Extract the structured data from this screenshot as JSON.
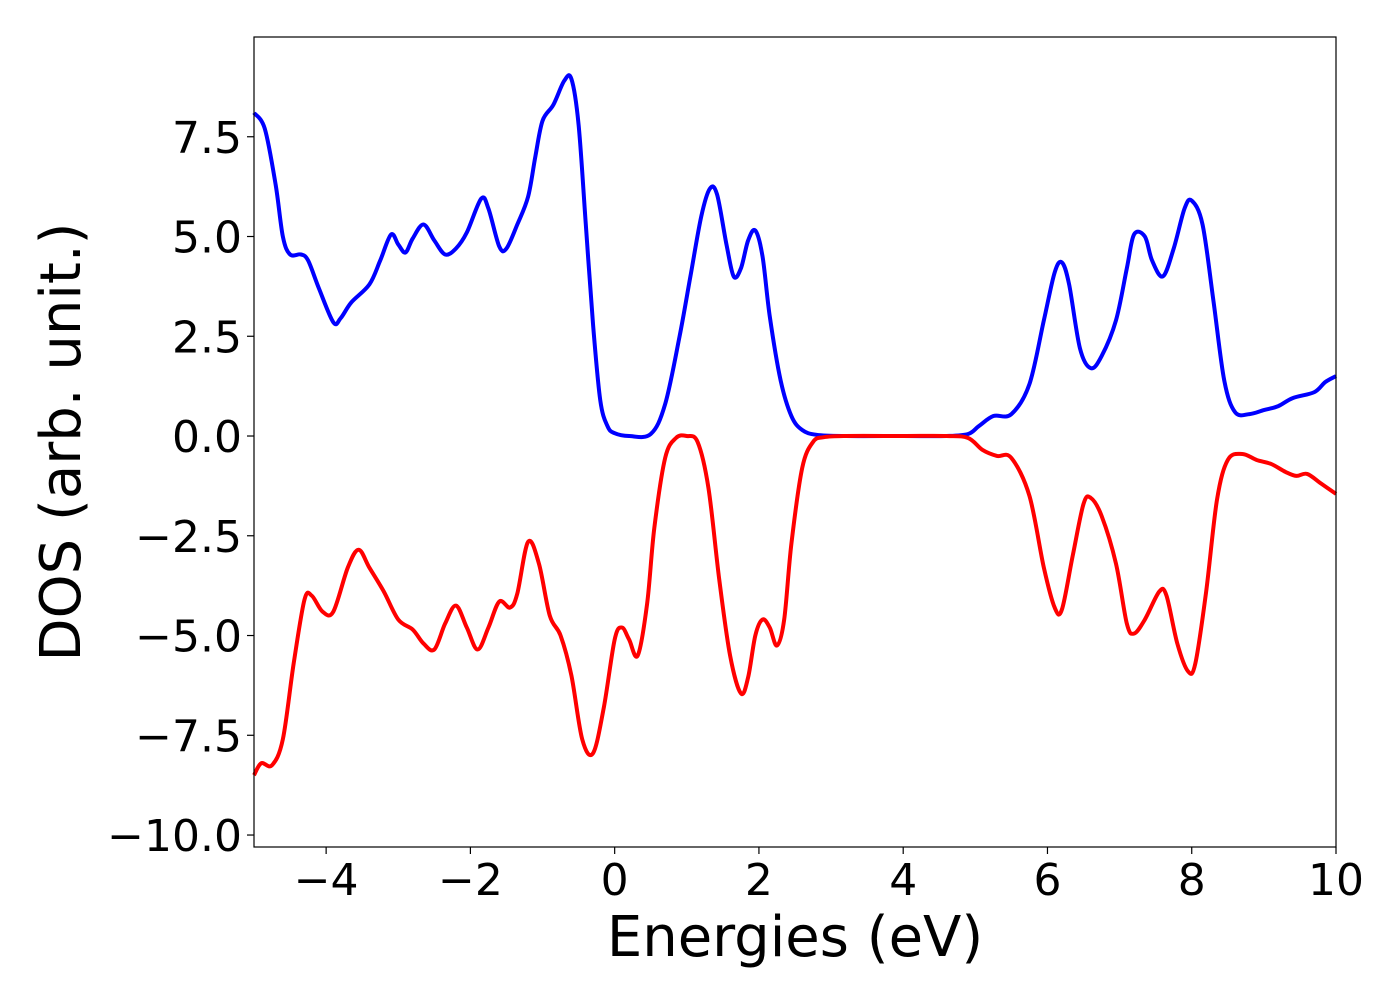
{
  "chart_data": {
    "type": "line",
    "title": "",
    "xlabel": "Energies (eV)",
    "ylabel": "DOS (arb. unit.)",
    "xlim": [
      -5,
      10
    ],
    "ylim": [
      -10.3,
      10
    ],
    "grid": false,
    "legend": "none",
    "x_ticks": [
      -4,
      -2,
      0,
      2,
      4,
      6,
      8,
      10
    ],
    "x_tick_labels": [
      "−4",
      "−2",
      "0",
      "2",
      "4",
      "6",
      "8",
      "10"
    ],
    "y_ticks": [
      7.5,
      5.0,
      2.5,
      0.0,
      -2.5,
      -5.0,
      -7.5,
      -10.0
    ],
    "y_tick_labels": [
      "7.5",
      "5.0",
      "2.5",
      "0.0",
      "−2.5",
      "−5.0",
      "−7.5",
      "−10.0"
    ],
    "series": [
      {
        "color": "#0000ff",
        "points": [
          [
            -5.0,
            8.1
          ],
          [
            -4.85,
            7.7
          ],
          [
            -4.7,
            6.3
          ],
          [
            -4.6,
            5.0
          ],
          [
            -4.5,
            4.55
          ],
          [
            -4.35,
            4.55
          ],
          [
            -4.25,
            4.4
          ],
          [
            -4.1,
            3.7
          ],
          [
            -3.9,
            2.85
          ],
          [
            -3.8,
            2.95
          ],
          [
            -3.65,
            3.35
          ],
          [
            -3.4,
            3.8
          ],
          [
            -3.25,
            4.4
          ],
          [
            -3.1,
            5.05
          ],
          [
            -3.0,
            4.8
          ],
          [
            -2.9,
            4.6
          ],
          [
            -2.8,
            4.95
          ],
          [
            -2.65,
            5.3
          ],
          [
            -2.5,
            4.9
          ],
          [
            -2.35,
            4.55
          ],
          [
            -2.2,
            4.7
          ],
          [
            -2.05,
            5.1
          ],
          [
            -1.85,
            5.95
          ],
          [
            -1.75,
            5.7
          ],
          [
            -1.6,
            4.75
          ],
          [
            -1.5,
            4.7
          ],
          [
            -1.35,
            5.3
          ],
          [
            -1.2,
            6.0
          ],
          [
            -1.1,
            7.0
          ],
          [
            -1.0,
            7.9
          ],
          [
            -0.85,
            8.3
          ],
          [
            -0.7,
            8.9
          ],
          [
            -0.6,
            8.95
          ],
          [
            -0.5,
            7.8
          ],
          [
            -0.4,
            5.3
          ],
          [
            -0.3,
            2.8
          ],
          [
            -0.2,
            0.9
          ],
          [
            -0.1,
            0.25
          ],
          [
            0.0,
            0.07
          ],
          [
            0.2,
            0.0
          ],
          [
            0.5,
            0.05
          ],
          [
            0.7,
            0.8
          ],
          [
            0.9,
            2.5
          ],
          [
            1.05,
            4.0
          ],
          [
            1.2,
            5.5
          ],
          [
            1.32,
            6.2
          ],
          [
            1.42,
            6.05
          ],
          [
            1.55,
            4.8
          ],
          [
            1.65,
            4.0
          ],
          [
            1.75,
            4.2
          ],
          [
            1.85,
            4.9
          ],
          [
            1.95,
            5.15
          ],
          [
            2.05,
            4.5
          ],
          [
            2.15,
            3.0
          ],
          [
            2.3,
            1.4
          ],
          [
            2.45,
            0.5
          ],
          [
            2.6,
            0.15
          ],
          [
            2.8,
            0.03
          ],
          [
            3.2,
            0.0
          ],
          [
            4.0,
            0.0
          ],
          [
            4.6,
            0.0
          ],
          [
            4.9,
            0.05
          ],
          [
            5.05,
            0.25
          ],
          [
            5.25,
            0.5
          ],
          [
            5.5,
            0.55
          ],
          [
            5.75,
            1.3
          ],
          [
            5.95,
            2.9
          ],
          [
            6.1,
            4.1
          ],
          [
            6.2,
            4.35
          ],
          [
            6.3,
            3.8
          ],
          [
            6.45,
            2.2
          ],
          [
            6.6,
            1.7
          ],
          [
            6.75,
            2.0
          ],
          [
            6.95,
            2.9
          ],
          [
            7.1,
            4.2
          ],
          [
            7.2,
            5.05
          ],
          [
            7.35,
            5.0
          ],
          [
            7.45,
            4.4
          ],
          [
            7.6,
            4.0
          ],
          [
            7.75,
            4.7
          ],
          [
            7.9,
            5.7
          ],
          [
            8.0,
            5.9
          ],
          [
            8.15,
            5.3
          ],
          [
            8.3,
            3.4
          ],
          [
            8.45,
            1.4
          ],
          [
            8.6,
            0.6
          ],
          [
            8.8,
            0.55
          ],
          [
            9.0,
            0.65
          ],
          [
            9.2,
            0.75
          ],
          [
            9.4,
            0.95
          ],
          [
            9.7,
            1.1
          ],
          [
            9.85,
            1.35
          ],
          [
            10.0,
            1.5
          ]
        ]
      },
      {
        "color": "#ff0000",
        "points": [
          [
            -5.0,
            -8.5
          ],
          [
            -4.9,
            -8.2
          ],
          [
            -4.75,
            -8.25
          ],
          [
            -4.6,
            -7.6
          ],
          [
            -4.45,
            -5.7
          ],
          [
            -4.3,
            -4.1
          ],
          [
            -4.2,
            -4.0
          ],
          [
            -4.05,
            -4.4
          ],
          [
            -3.9,
            -4.4
          ],
          [
            -3.7,
            -3.3
          ],
          [
            -3.55,
            -2.85
          ],
          [
            -3.4,
            -3.3
          ],
          [
            -3.2,
            -3.9
          ],
          [
            -3.0,
            -4.6
          ],
          [
            -2.8,
            -4.85
          ],
          [
            -2.65,
            -5.2
          ],
          [
            -2.5,
            -5.35
          ],
          [
            -2.35,
            -4.7
          ],
          [
            -2.2,
            -4.25
          ],
          [
            -2.05,
            -4.8
          ],
          [
            -1.9,
            -5.35
          ],
          [
            -1.75,
            -4.8
          ],
          [
            -1.6,
            -4.15
          ],
          [
            -1.45,
            -4.3
          ],
          [
            -1.35,
            -3.95
          ],
          [
            -1.2,
            -2.65
          ],
          [
            -1.05,
            -3.2
          ],
          [
            -0.9,
            -4.5
          ],
          [
            -0.75,
            -5.0
          ],
          [
            -0.6,
            -6.0
          ],
          [
            -0.45,
            -7.6
          ],
          [
            -0.3,
            -7.95
          ],
          [
            -0.15,
            -6.8
          ],
          [
            0.0,
            -5.1
          ],
          [
            0.1,
            -4.8
          ],
          [
            0.2,
            -5.1
          ],
          [
            0.32,
            -5.5
          ],
          [
            0.45,
            -4.2
          ],
          [
            0.55,
            -2.3
          ],
          [
            0.7,
            -0.55
          ],
          [
            0.85,
            -0.05
          ],
          [
            1.0,
            0.0
          ],
          [
            1.15,
            -0.15
          ],
          [
            1.3,
            -1.3
          ],
          [
            1.45,
            -3.6
          ],
          [
            1.6,
            -5.5
          ],
          [
            1.75,
            -6.45
          ],
          [
            1.85,
            -6.05
          ],
          [
            1.95,
            -5.0
          ],
          [
            2.05,
            -4.6
          ],
          [
            2.15,
            -4.8
          ],
          [
            2.25,
            -5.25
          ],
          [
            2.35,
            -4.6
          ],
          [
            2.45,
            -2.7
          ],
          [
            2.6,
            -0.8
          ],
          [
            2.75,
            -0.15
          ],
          [
            2.9,
            -0.03
          ],
          [
            3.2,
            0.0
          ],
          [
            4.0,
            0.0
          ],
          [
            4.6,
            0.0
          ],
          [
            4.9,
            -0.05
          ],
          [
            5.1,
            -0.35
          ],
          [
            5.3,
            -0.5
          ],
          [
            5.5,
            -0.55
          ],
          [
            5.75,
            -1.5
          ],
          [
            5.95,
            -3.3
          ],
          [
            6.1,
            -4.3
          ],
          [
            6.2,
            -4.35
          ],
          [
            6.35,
            -3.0
          ],
          [
            6.5,
            -1.7
          ],
          [
            6.6,
            -1.55
          ],
          [
            6.75,
            -2.0
          ],
          [
            6.95,
            -3.2
          ],
          [
            7.1,
            -4.7
          ],
          [
            7.2,
            -4.95
          ],
          [
            7.35,
            -4.6
          ],
          [
            7.55,
            -3.9
          ],
          [
            7.65,
            -4.0
          ],
          [
            7.8,
            -5.2
          ],
          [
            7.95,
            -5.9
          ],
          [
            8.05,
            -5.7
          ],
          [
            8.2,
            -3.9
          ],
          [
            8.35,
            -1.6
          ],
          [
            8.5,
            -0.6
          ],
          [
            8.7,
            -0.45
          ],
          [
            8.9,
            -0.6
          ],
          [
            9.1,
            -0.7
          ],
          [
            9.3,
            -0.9
          ],
          [
            9.45,
            -1.0
          ],
          [
            9.6,
            -0.95
          ],
          [
            9.8,
            -1.2
          ],
          [
            10.0,
            -1.45
          ]
        ]
      }
    ]
  }
}
